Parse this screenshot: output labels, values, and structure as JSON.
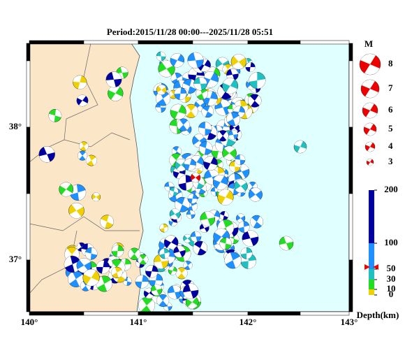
{
  "title": "Period:2015/11/28 00:00---2025/11/28 05:51",
  "map": {
    "lon_labels": [
      "140°",
      "141°",
      "142°",
      "143°"
    ],
    "lat_labels": [
      "38°",
      "37°"
    ]
  },
  "legend": {
    "title": "M",
    "magnitudes": [
      "8",
      "7",
      "6",
      "5",
      "4",
      "3"
    ]
  },
  "depth_scale": {
    "labels": [
      200,
      100,
      50,
      30,
      10,
      0
    ],
    "title": "Depth(km)"
  }
}
